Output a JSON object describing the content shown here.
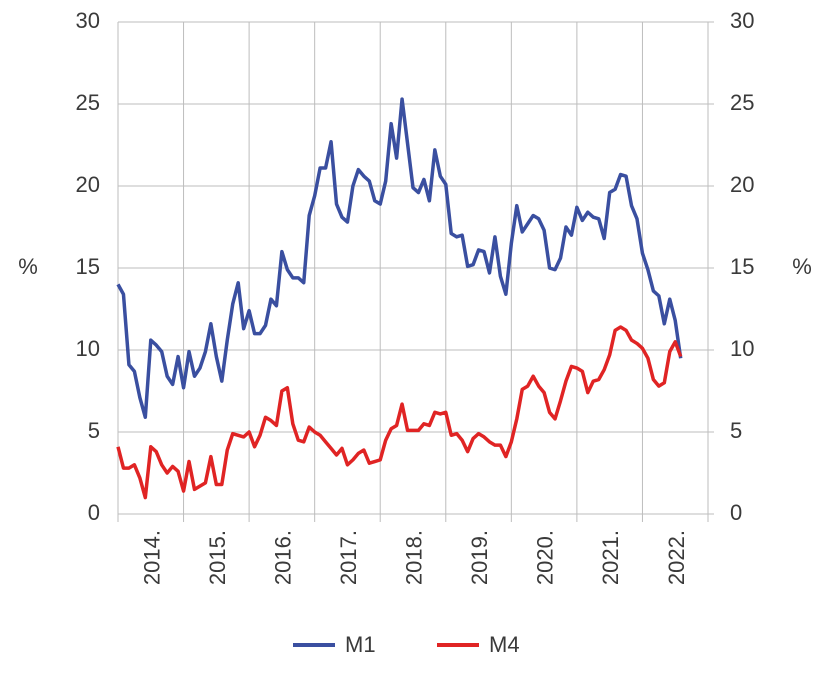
{
  "chart_data": {
    "type": "line",
    "categories": [
      null,
      null,
      null,
      null,
      null,
      null,
      "2014.",
      null,
      null,
      null,
      null,
      null,
      null,
      null,
      null,
      null,
      null,
      null,
      "2015.",
      null,
      null,
      null,
      null,
      null,
      null,
      null,
      null,
      null,
      null,
      null,
      "2016.",
      null,
      null,
      null,
      null,
      null,
      null,
      null,
      null,
      null,
      null,
      null,
      "2017.",
      null,
      null,
      null,
      null,
      null,
      null,
      null,
      null,
      null,
      null,
      null,
      "2018.",
      null,
      null,
      null,
      null,
      null,
      null,
      null,
      null,
      null,
      null,
      null,
      "2019.",
      null,
      null,
      null,
      null,
      null,
      null,
      null,
      null,
      null,
      null,
      null,
      "2020.",
      null,
      null,
      null,
      null,
      null,
      null,
      null,
      null,
      null,
      null,
      null,
      "2021.",
      null,
      null,
      null,
      null,
      null,
      null,
      null,
      null,
      null,
      null,
      null,
      "2022.",
      null
    ],
    "series": [
      {
        "name": "M1",
        "color": "#3a4fa0",
        "values": [
          14.0,
          13.4,
          9.1,
          8.7,
          7.1,
          5.9,
          10.6,
          10.3,
          9.9,
          8.4,
          7.9,
          9.6,
          7.7,
          9.9,
          8.4,
          8.9,
          9.9,
          11.6,
          9.6,
          8.1,
          10.6,
          12.8,
          14.1,
          11.3,
          12.4,
          11.0,
          11.0,
          11.5,
          13.1,
          12.7,
          16.0,
          14.9,
          14.4,
          14.4,
          14.1,
          18.2,
          19.4,
          21.1,
          21.1,
          22.7,
          18.9,
          18.1,
          17.8,
          20.0,
          21.0,
          20.6,
          20.3,
          19.1,
          18.9,
          20.3,
          23.8,
          21.7,
          25.3,
          22.6,
          19.9,
          19.6,
          20.4,
          19.1,
          22.2,
          20.6,
          20.1,
          17.1,
          16.9,
          17.0,
          15.1,
          15.2,
          16.1,
          16.0,
          14.7,
          16.9,
          14.5,
          13.4,
          16.5,
          18.8,
          17.2,
          17.7,
          18.2,
          18.0,
          17.3,
          15.0,
          14.9,
          15.6,
          17.5,
          17.0,
          18.7,
          17.9,
          18.4,
          18.1,
          18.0,
          16.8,
          19.6,
          19.8,
          20.7,
          20.6,
          18.8,
          18.0,
          15.9,
          14.9,
          13.6,
          13.3,
          11.6,
          13.1,
          11.8,
          9.5
        ]
      },
      {
        "name": "M4",
        "color": "#e02424",
        "values": [
          4.1,
          2.8,
          2.8,
          3.0,
          2.2,
          1.0,
          4.1,
          3.8,
          3.0,
          2.5,
          2.9,
          2.6,
          1.4,
          3.2,
          1.5,
          1.7,
          1.9,
          3.5,
          1.8,
          1.8,
          3.9,
          4.9,
          4.8,
          4.7,
          5.0,
          4.1,
          4.8,
          5.9,
          5.7,
          5.4,
          7.5,
          7.7,
          5.5,
          4.5,
          4.4,
          5.3,
          5.0,
          4.8,
          4.4,
          4.0,
          3.6,
          4.0,
          3.0,
          3.3,
          3.7,
          3.9,
          3.1,
          3.2,
          3.3,
          4.5,
          5.2,
          5.4,
          6.7,
          5.1,
          5.1,
          5.1,
          5.5,
          5.4,
          6.2,
          6.1,
          6.2,
          4.8,
          4.9,
          4.5,
          3.8,
          4.6,
          4.9,
          4.7,
          4.4,
          4.2,
          4.2,
          3.5,
          4.4,
          5.8,
          7.6,
          7.8,
          8.4,
          7.8,
          7.4,
          6.2,
          5.8,
          6.9,
          8.1,
          9.0,
          8.9,
          8.7,
          7.4,
          8.1,
          8.2,
          8.8,
          9.7,
          11.2,
          11.4,
          11.2,
          10.6,
          10.4,
          10.1,
          9.5,
          8.2,
          7.8,
          8.0,
          9.9,
          10.5,
          9.6
        ]
      }
    ],
    "ylabel": "%",
    "y2label": "%",
    "ylim": [
      0,
      30
    ],
    "yticks": [
      0,
      5,
      10,
      15,
      20,
      25,
      30
    ],
    "y2lim": [
      0,
      30
    ],
    "y2ticks": [
      0,
      5,
      10,
      15,
      20,
      25,
      30
    ],
    "grid": true,
    "legend": "bottom"
  }
}
